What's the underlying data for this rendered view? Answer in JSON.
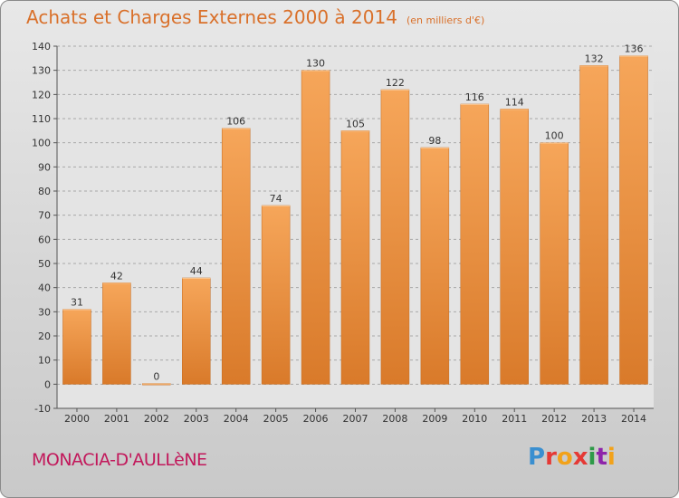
{
  "chart_data": {
    "type": "bar",
    "title": "Achats et Charges Externes 2000 à 2014",
    "subtitle": "(en milliers d'€)",
    "categories": [
      "2000",
      "2001",
      "2002",
      "2003",
      "2004",
      "2005",
      "2006",
      "2007",
      "2008",
      "2009",
      "2010",
      "2011",
      "2012",
      "2013",
      "2014"
    ],
    "values": [
      31,
      42,
      0,
      44,
      106,
      74,
      130,
      105,
      122,
      98,
      116,
      114,
      100,
      132,
      136
    ],
    "ylim": [
      -10,
      140
    ],
    "yticks": [
      -10,
      0,
      10,
      20,
      30,
      40,
      50,
      60,
      70,
      80,
      90,
      100,
      110,
      120,
      130,
      140
    ],
    "grid": true,
    "bar_color": "#f0963c"
  },
  "footer": {
    "city": "MONACIA-D'AULLèNE",
    "logo": [
      "P",
      "r",
      "o",
      "x",
      "i",
      "t",
      "i"
    ]
  }
}
